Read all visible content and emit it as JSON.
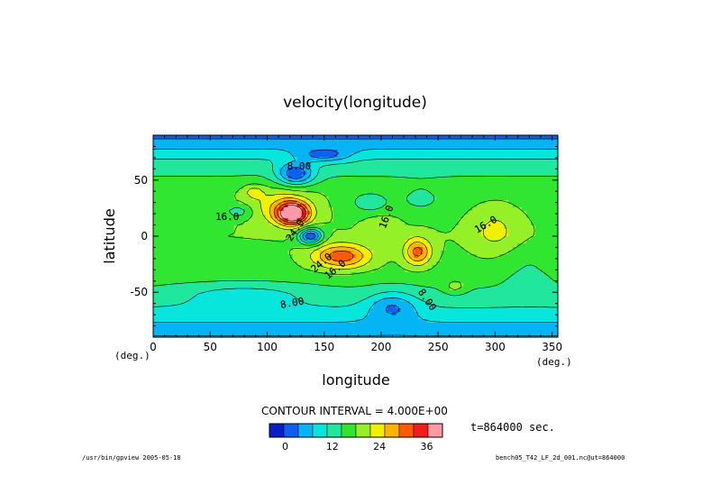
{
  "chart_data": {
    "type": "heatmap",
    "title": "velocity(longitude)",
    "xlabel": "longitude",
    "ylabel": "latitude",
    "x_unit": "(deg.)",
    "y_unit": "(deg.)",
    "xlim": [
      0,
      355
    ],
    "ylim": [
      -90,
      90
    ],
    "x_ticks": [
      0,
      50,
      100,
      150,
      200,
      250,
      300,
      350
    ],
    "y_ticks": [
      -50,
      0,
      50
    ],
    "contour_interval_label": "CONTOUR INTERVAL = 4.000E+00",
    "colorbar": {
      "colors": [
        "#0a1ec8",
        "#0f5ff0",
        "#05b4f5",
        "#06e6dc",
        "#20e69e",
        "#30e630",
        "#96f028",
        "#f0f000",
        "#ffb400",
        "#ff5a00",
        "#f01e1e",
        "#ff9aa6"
      ],
      "tick_labels": [
        "0",
        "12",
        "24",
        "36"
      ],
      "tick_values": [
        0,
        12,
        24,
        36
      ],
      "min": -4,
      "max": 40
    },
    "contour_labels": [
      "8.00",
      "16.0",
      "16.0",
      "16.0",
      "24.0",
      "24.0",
      "16.0",
      "8.00",
      "8.00"
    ],
    "field": {
      "background": 17,
      "lat_profile": [
        {
          "lat": 90,
          "v": 2
        },
        {
          "lat": 80,
          "v": 6
        },
        {
          "lat": 68,
          "v": 11
        },
        {
          "lat": 55,
          "v": 14
        },
        {
          "lat": 40,
          "v": 17
        },
        {
          "lat": 0,
          "v": 18
        },
        {
          "lat": -30,
          "v": 17
        },
        {
          "lat": -55,
          "v": 13
        },
        {
          "lat": -70,
          "v": 9
        },
        {
          "lat": -80,
          "v": 6
        },
        {
          "lat": -90,
          "v": 3
        }
      ],
      "features": [
        {
          "lon": 122,
          "lat": 20,
          "amp": 25,
          "slon": 14,
          "slat": 10
        },
        {
          "lon": 112,
          "lat": 28,
          "amp": 6,
          "slon": 30,
          "slat": 16
        },
        {
          "lon": 138,
          "lat": 0,
          "amp": -19,
          "slon": 10,
          "slat": 7
        },
        {
          "lon": 125,
          "lat": 55,
          "amp": -14,
          "slon": 16,
          "slat": 10
        },
        {
          "lon": 165,
          "lat": -18,
          "amp": 14,
          "slon": 25,
          "slat": 11
        },
        {
          "lon": 232,
          "lat": -14,
          "amp": 13,
          "slon": 12,
          "slat": 12
        },
        {
          "lon": 88,
          "lat": 40,
          "amp": 5,
          "slon": 9,
          "slat": 6
        },
        {
          "lon": 75,
          "lat": 22,
          "amp": -6,
          "slon": 12,
          "slat": 6
        },
        {
          "lon": 150,
          "lat": 72,
          "amp": -8,
          "slon": 22,
          "slat": 6
        },
        {
          "lon": 80,
          "lat": -52,
          "amp": -5,
          "slon": 55,
          "slat": 10
        },
        {
          "lon": 210,
          "lat": -62,
          "amp": -8,
          "slon": 22,
          "slat": 13
        },
        {
          "lon": 300,
          "lat": 5,
          "amp": 5,
          "slon": 20,
          "slat": 20
        },
        {
          "lon": 265,
          "lat": -45,
          "amp": 5,
          "slon": 9,
          "slat": 6
        },
        {
          "lon": 235,
          "lat": 33,
          "amp": -4,
          "slon": 20,
          "slat": 12
        },
        {
          "lon": 190,
          "lat": 30,
          "amp": -5,
          "slon": 18,
          "slat": 10
        },
        {
          "lon": 20,
          "lat": -15,
          "amp": -2,
          "slon": 25,
          "slat": 15
        },
        {
          "lon": 200,
          "lat": 10,
          "amp": 4,
          "slon": 14,
          "slat": 8
        },
        {
          "lon": 330,
          "lat": -30,
          "amp": -3,
          "slon": 25,
          "slat": 20
        }
      ]
    }
  },
  "time_label": "t=864000 sec.",
  "footer_left": "/usr/bin/gpview  2005-05-18",
  "footer_right": "bench05_T42_LF_2d_001.nc@ut=864000"
}
